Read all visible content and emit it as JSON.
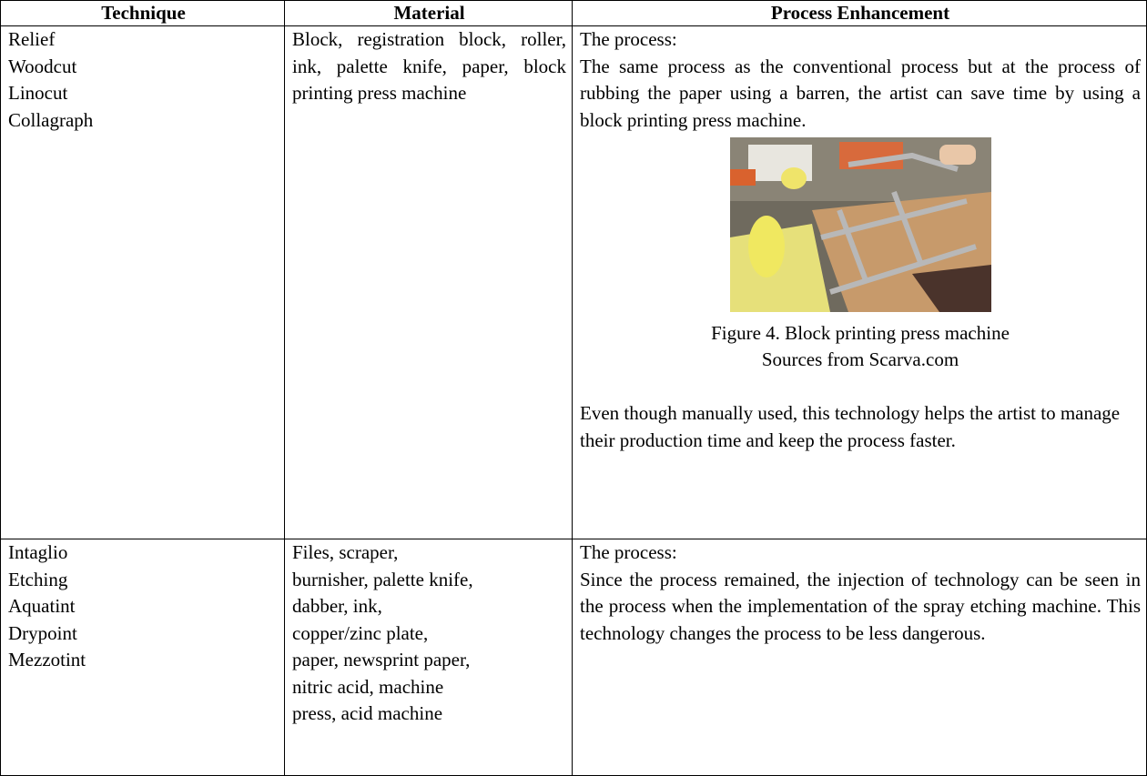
{
  "table": {
    "headers": [
      "Technique",
      "Material",
      "Process Enhancement"
    ],
    "rows": [
      {
        "technique": [
          "Relief",
          "Woodcut",
          "Linocut",
          "Collagraph"
        ],
        "material": "Block, registration block, roller, ink, palette knife, paper, block printing press machine",
        "process": {
          "heading": "The process:",
          "text": "The same process as the conventional process but at the process of rubbing the paper using a barren, the artist can save time by using a block printing press machine.",
          "figure_caption": "Figure 4. Block printing press machine",
          "figure_source": "Sources from Scarva.com",
          "note": "Even though manually used, this technology helps the artist to manage their production time and keep the process faster."
        }
      },
      {
        "technique": [
          "Intaglio",
          "Etching",
          "Aquatint",
          "Drypoint",
          "Mezzotint"
        ],
        "material": [
          "Files, scraper,",
          "burnisher, palette knife,",
          "dabber, ink,",
          "copper/zinc plate,",
          "paper, newsprint paper,",
          "nitric acid, machine",
          "press, acid machine"
        ],
        "process": {
          "heading": "The process:",
          "text": "Since the process remained, the injection of technology can be seen in the process when the implementation of the spray etching machine. This technology changes the process to be less dangerous."
        }
      }
    ]
  }
}
